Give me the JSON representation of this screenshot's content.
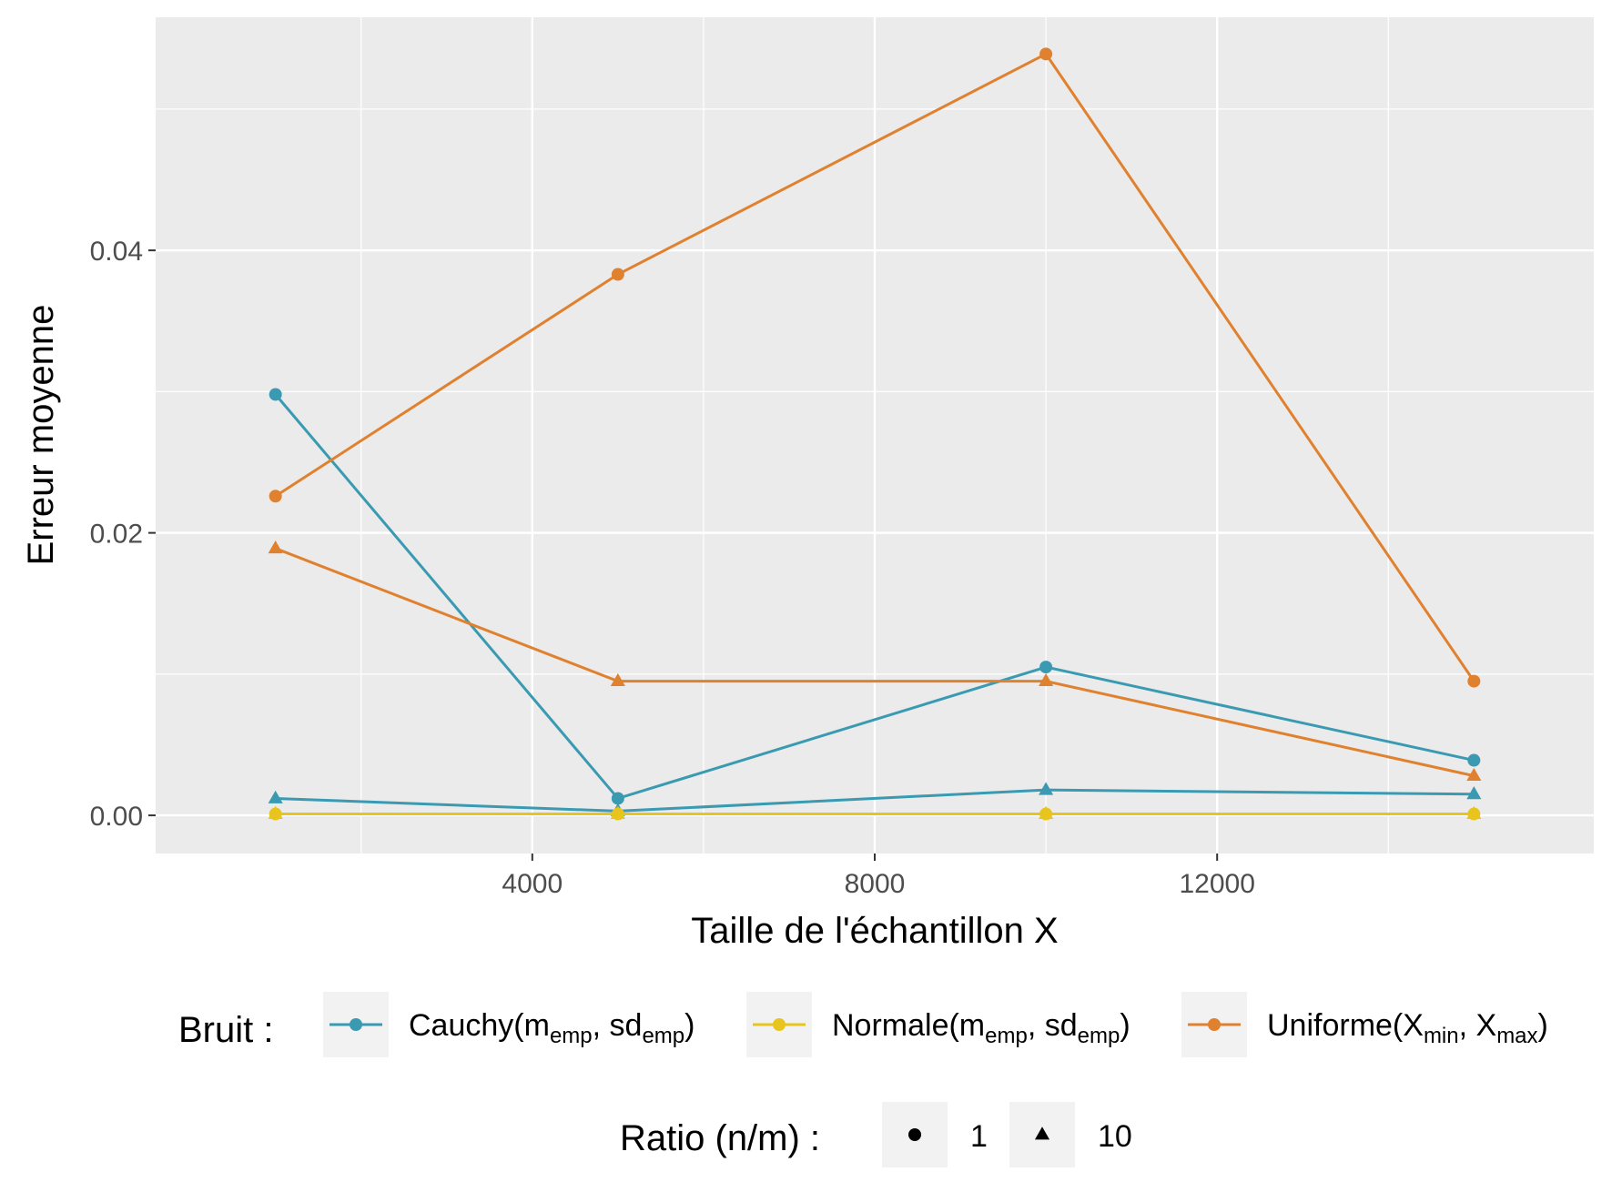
{
  "chart_data": {
    "type": "line",
    "xlabel": "Taille de l'échantillon X",
    "ylabel": "Erreur moyenne",
    "xlim": [
      -400,
      16400
    ],
    "ylim": [
      -0.0027,
      0.0565
    ],
    "x_ticks": [
      4000,
      8000,
      12000
    ],
    "x_tick_labels": [
      "4000",
      "8000",
      "12000"
    ],
    "x_minor_ticks": [
      2000,
      6000,
      10000,
      14000
    ],
    "y_ticks": [
      0.0,
      0.02,
      0.04
    ],
    "y_tick_labels": [
      "0.00",
      "0.02",
      "0.04"
    ],
    "y_minor_ticks": [
      0.01,
      0.03,
      0.05
    ],
    "grid": true,
    "legend_position": "bottom",
    "x": [
      1000,
      5000,
      10000,
      15000
    ],
    "series": [
      {
        "bruit": "Cauchy",
        "ratio": "1",
        "color": "#3a9ab2",
        "shape": "circle",
        "values": [
          0.0298,
          0.0012,
          0.0105,
          0.0039
        ]
      },
      {
        "bruit": "Cauchy",
        "ratio": "10",
        "color": "#3a9ab2",
        "shape": "triangle",
        "values": [
          0.0012,
          0.0003,
          0.0018,
          0.0015
        ]
      },
      {
        "bruit": "Normale",
        "ratio": "1",
        "color": "#e8c51e",
        "shape": "circle",
        "values": [
          0.0001,
          0.0001,
          0.0001,
          0.0001
        ]
      },
      {
        "bruit": "Normale",
        "ratio": "10",
        "color": "#e8c51e",
        "shape": "triangle",
        "values": [
          0.0001,
          0.0001,
          0.0001,
          0.0001
        ]
      },
      {
        "bruit": "Uniforme",
        "ratio": "1",
        "color": "#e0812f",
        "shape": "circle",
        "values": [
          0.0226,
          0.0383,
          0.0539,
          0.0095
        ]
      },
      {
        "bruit": "Uniforme",
        "ratio": "10",
        "color": "#e0812f",
        "shape": "triangle",
        "values": [
          0.0189,
          0.0095,
          0.0095,
          0.0028
        ]
      }
    ]
  },
  "legend": {
    "bruit_title": "Bruit :",
    "bruit_items": [
      {
        "key": "Cauchy",
        "color": "#3a9ab2",
        "parts": [
          [
            "Cauchy(m",
            ""
          ],
          [
            "emp",
            "sub"
          ],
          [
            ", sd",
            ""
          ],
          [
            "emp",
            "sub"
          ],
          [
            ")",
            ""
          ]
        ]
      },
      {
        "key": "Normale",
        "color": "#e8c51e",
        "parts": [
          [
            "Normale(m",
            ""
          ],
          [
            "emp",
            "sub"
          ],
          [
            ", sd",
            ""
          ],
          [
            "emp",
            "sub"
          ],
          [
            ")",
            ""
          ]
        ]
      },
      {
        "key": "Uniforme",
        "color": "#e0812f",
        "parts": [
          [
            "Uniforme(X",
            ""
          ],
          [
            "min",
            "sub"
          ],
          [
            ", X",
            ""
          ],
          [
            "max",
            "sub"
          ],
          [
            ")",
            ""
          ]
        ]
      }
    ],
    "ratio_title": "Ratio (n/m) :",
    "ratio_items": [
      {
        "label": "1",
        "shape": "circle"
      },
      {
        "label": "10",
        "shape": "triangle"
      }
    ]
  }
}
